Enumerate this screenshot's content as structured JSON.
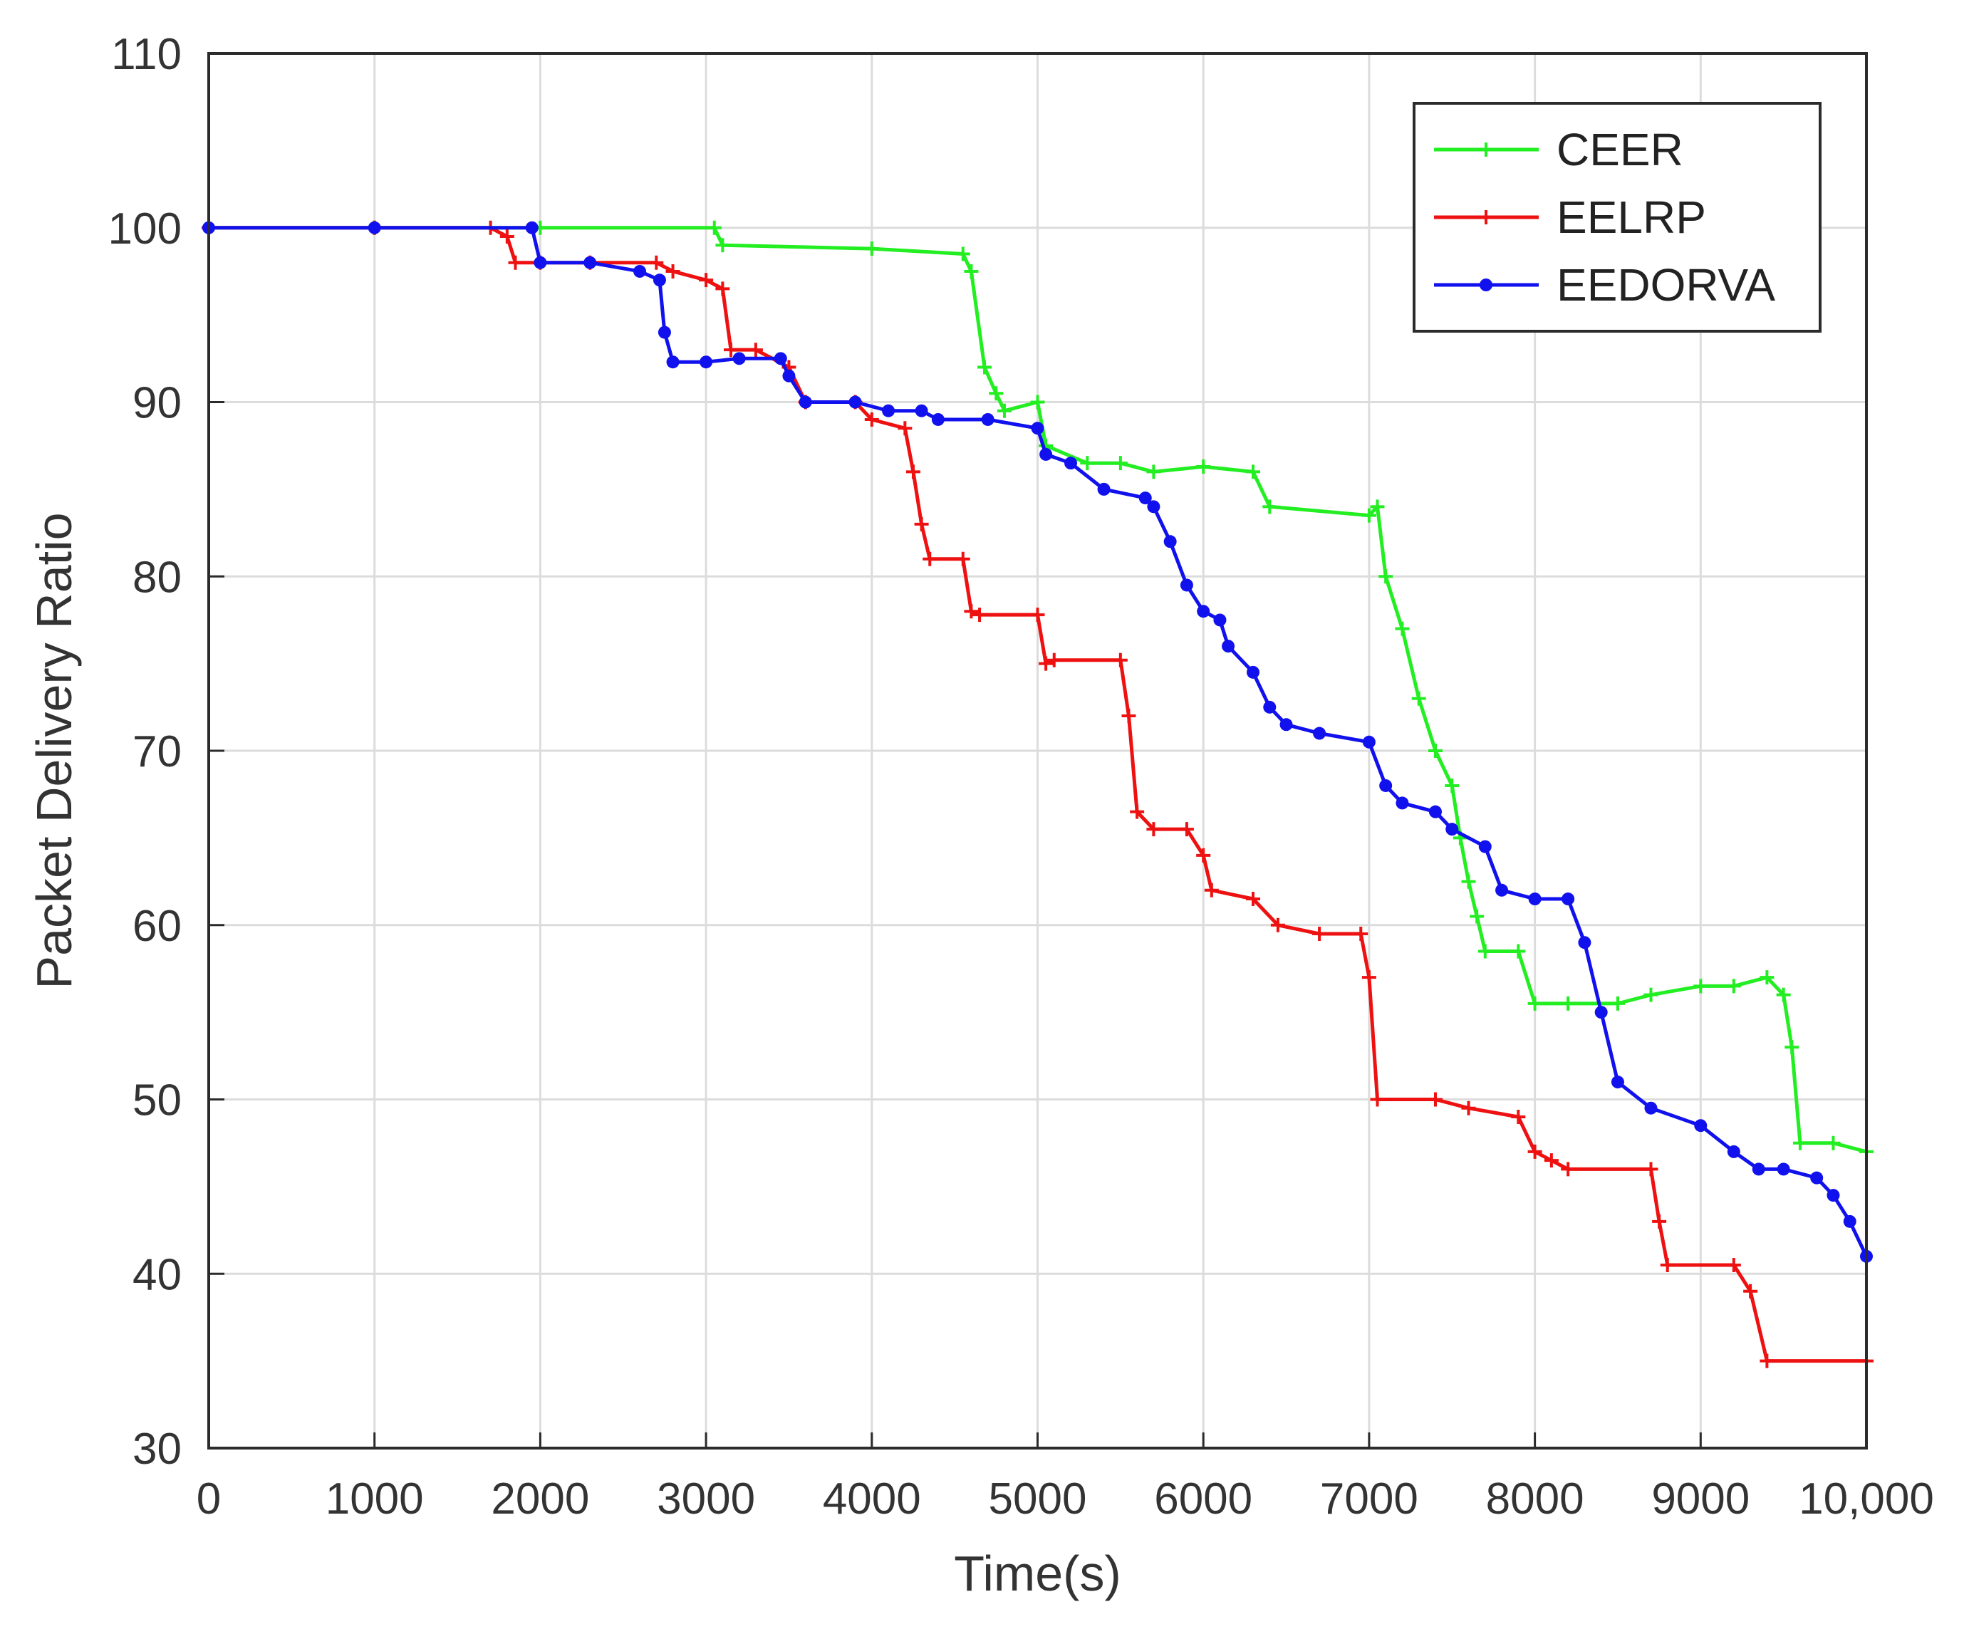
{
  "chart_data": {
    "type": "line",
    "xlabel": "Time(s)",
    "ylabel": "Packet Delivery Ratio",
    "xlim": [
      0,
      10000
    ],
    "ylim": [
      30,
      110
    ],
    "xticks": [
      0,
      1000,
      2000,
      3000,
      4000,
      5000,
      6000,
      7000,
      8000,
      9000,
      10000
    ],
    "xtick_labels": [
      "0",
      "1000",
      "2000",
      "3000",
      "4000",
      "5000",
      "6000",
      "7000",
      "8000",
      "9000",
      "10,000"
    ],
    "yticks": [
      30,
      40,
      50,
      60,
      70,
      80,
      90,
      100,
      110
    ],
    "ytick_labels": [
      "30",
      "40",
      "50",
      "60",
      "70",
      "80",
      "90",
      "100",
      "110"
    ],
    "grid": true,
    "legend_position": "top-right",
    "series": [
      {
        "name": "CEER",
        "color": "#22ee22",
        "marker": "+",
        "points": [
          [
            0,
            100
          ],
          [
            1000,
            100
          ],
          [
            2000,
            100
          ],
          [
            3050,
            100
          ],
          [
            3100,
            99
          ],
          [
            4000,
            98.8
          ],
          [
            4550,
            98.5
          ],
          [
            4600,
            97.5
          ],
          [
            4680,
            92
          ],
          [
            4750,
            90.5
          ],
          [
            4800,
            89.5
          ],
          [
            5000,
            90
          ],
          [
            5050,
            87.5
          ],
          [
            5300,
            86.5
          ],
          [
            5500,
            86.5
          ],
          [
            5700,
            86
          ],
          [
            6000,
            86.3
          ],
          [
            6300,
            86
          ],
          [
            6400,
            84
          ],
          [
            7000,
            83.5
          ],
          [
            7050,
            84
          ],
          [
            7100,
            80
          ],
          [
            7200,
            77
          ],
          [
            7300,
            73
          ],
          [
            7400,
            70
          ],
          [
            7500,
            68
          ],
          [
            7550,
            65
          ],
          [
            7600,
            62.5
          ],
          [
            7650,
            60.5
          ],
          [
            7700,
            58.5
          ],
          [
            7900,
            58.5
          ],
          [
            8000,
            55.5
          ],
          [
            8200,
            55.5
          ],
          [
            8500,
            55.5
          ],
          [
            8700,
            56
          ],
          [
            9000,
            56.5
          ],
          [
            9200,
            56.5
          ],
          [
            9400,
            57
          ],
          [
            9500,
            56
          ],
          [
            9550,
            53
          ],
          [
            9600,
            47.5
          ],
          [
            9800,
            47.5
          ],
          [
            10000,
            47
          ]
        ]
      },
      {
        "name": "EELRP",
        "color": "#ee1111",
        "marker": "+",
        "points": [
          [
            0,
            100
          ],
          [
            1000,
            100
          ],
          [
            1700,
            100
          ],
          [
            1800,
            99.5
          ],
          [
            1850,
            98
          ],
          [
            2000,
            98
          ],
          [
            2300,
            98
          ],
          [
            2700,
            98
          ],
          [
            2800,
            97.5
          ],
          [
            3000,
            97
          ],
          [
            3100,
            96.5
          ],
          [
            3150,
            93
          ],
          [
            3300,
            93
          ],
          [
            3500,
            92
          ],
          [
            3600,
            90
          ],
          [
            3900,
            90
          ],
          [
            4000,
            89
          ],
          [
            4200,
            88.5
          ],
          [
            4250,
            86
          ],
          [
            4300,
            83
          ],
          [
            4350,
            81
          ],
          [
            4550,
            81
          ],
          [
            4600,
            78
          ],
          [
            4650,
            77.8
          ],
          [
            5000,
            77.8
          ],
          [
            5050,
            75
          ],
          [
            5100,
            75.2
          ],
          [
            5500,
            75.2
          ],
          [
            5550,
            72
          ],
          [
            5600,
            66.5
          ],
          [
            5700,
            65.5
          ],
          [
            5900,
            65.5
          ],
          [
            6000,
            64
          ],
          [
            6050,
            62
          ],
          [
            6300,
            61.5
          ],
          [
            6450,
            60
          ],
          [
            6700,
            59.5
          ],
          [
            6950,
            59.5
          ],
          [
            7000,
            57
          ],
          [
            7050,
            50
          ],
          [
            7400,
            50
          ],
          [
            7600,
            49.5
          ],
          [
            7900,
            49
          ],
          [
            8000,
            47
          ],
          [
            8100,
            46.5
          ],
          [
            8200,
            46
          ],
          [
            8700,
            46
          ],
          [
            8750,
            43
          ],
          [
            8800,
            40.5
          ],
          [
            9200,
            40.5
          ],
          [
            9300,
            39
          ],
          [
            9400,
            35
          ],
          [
            10000,
            35
          ]
        ]
      },
      {
        "name": "EEDORVA",
        "color": "#1111ee",
        "marker": "o",
        "points": [
          [
            0,
            100
          ],
          [
            1000,
            100
          ],
          [
            1950,
            100
          ],
          [
            2000,
            98
          ],
          [
            2300,
            98
          ],
          [
            2600,
            97.5
          ],
          [
            2720,
            97
          ],
          [
            2750,
            94
          ],
          [
            2800,
            92.3
          ],
          [
            3000,
            92.3
          ],
          [
            3200,
            92.5
          ],
          [
            3450,
            92.5
          ],
          [
            3500,
            91.5
          ],
          [
            3600,
            90
          ],
          [
            3900,
            90
          ],
          [
            4100,
            89.5
          ],
          [
            4300,
            89.5
          ],
          [
            4400,
            89
          ],
          [
            4700,
            89
          ],
          [
            5000,
            88.5
          ],
          [
            5050,
            87
          ],
          [
            5200,
            86.5
          ],
          [
            5400,
            85
          ],
          [
            5650,
            84.5
          ],
          [
            5700,
            84
          ],
          [
            5800,
            82
          ],
          [
            5900,
            79.5
          ],
          [
            6000,
            78
          ],
          [
            6100,
            77.5
          ],
          [
            6150,
            76
          ],
          [
            6300,
            74.5
          ],
          [
            6400,
            72.5
          ],
          [
            6500,
            71.5
          ],
          [
            6700,
            71
          ],
          [
            7000,
            70.5
          ],
          [
            7100,
            68
          ],
          [
            7200,
            67
          ],
          [
            7400,
            66.5
          ],
          [
            7500,
            65.5
          ],
          [
            7700,
            64.5
          ],
          [
            7800,
            62
          ],
          [
            8000,
            61.5
          ],
          [
            8200,
            61.5
          ],
          [
            8300,
            59
          ],
          [
            8400,
            55
          ],
          [
            8500,
            51
          ],
          [
            8700,
            49.5
          ],
          [
            9000,
            48.5
          ],
          [
            9200,
            47
          ],
          [
            9350,
            46
          ],
          [
            9500,
            46
          ],
          [
            9700,
            45.5
          ],
          [
            9800,
            44.5
          ],
          [
            9900,
            43
          ],
          [
            10000,
            41
          ]
        ]
      }
    ]
  }
}
